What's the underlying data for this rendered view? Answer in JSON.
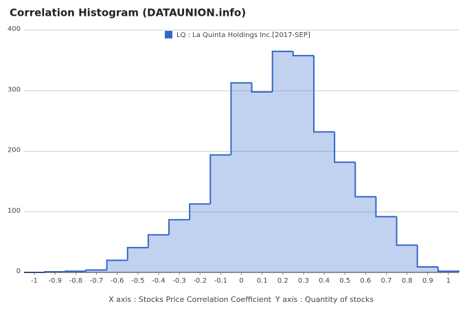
{
  "chart_data": {
    "type": "histogram",
    "title": "Correlation Histogram (DATAUNION.info)",
    "x_label": "X axis : Stocks Price Correlation Coefficient",
    "y_label": "Y axis : Quantity of stocks",
    "series": [
      {
        "name": "LQ : La Quinta Holdings Inc.[2017-SEP]",
        "color": "#3366cc",
        "values": [
          0,
          1,
          2,
          4,
          20,
          41,
          62,
          87,
          113,
          194,
          313,
          298,
          365,
          358,
          232,
          182,
          125,
          92,
          45,
          9,
          2
        ]
      }
    ],
    "bins": [
      -1.05,
      -0.95,
      -0.85,
      -0.75,
      -0.65,
      -0.55,
      -0.45,
      -0.35,
      -0.25,
      -0.15,
      -0.05,
      0.05,
      0.15,
      0.25,
      0.35,
      0.45,
      0.55,
      0.65,
      0.75,
      0.85,
      0.95,
      1.05
    ],
    "xlim": [
      -1.05,
      1.05
    ],
    "xticks": [
      -1,
      -0.9,
      -0.8,
      -0.7,
      -0.6,
      -0.5,
      -0.4,
      -0.3,
      -0.2,
      -0.1,
      0,
      0.1,
      0.2,
      0.3,
      0.4,
      0.5,
      0.6,
      0.7,
      0.8,
      0.9,
      1
    ],
    "ylim": [
      0,
      400
    ],
    "yticks": [
      0,
      100,
      200,
      300,
      400
    ],
    "grid": true,
    "legend": "top"
  }
}
